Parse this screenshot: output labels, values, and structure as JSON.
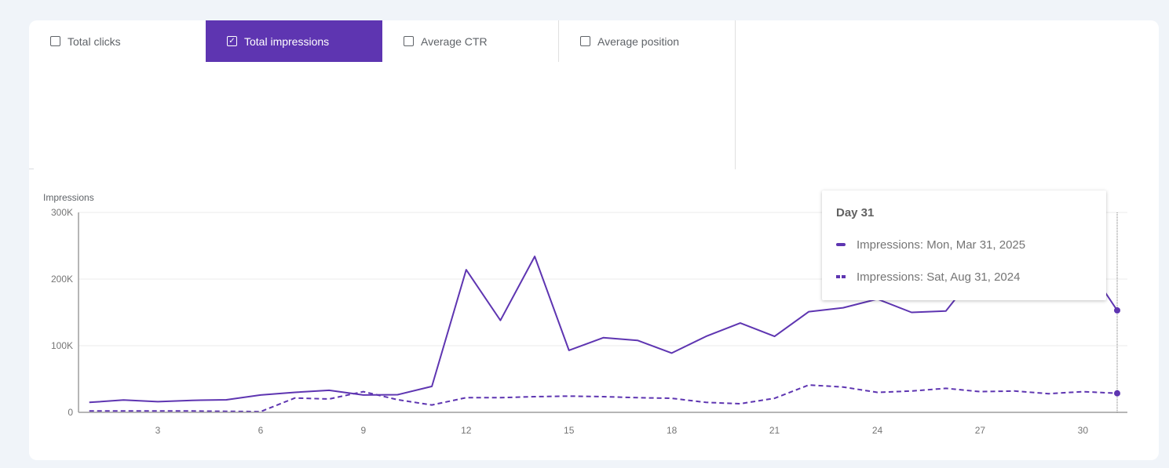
{
  "tabs": [
    {
      "label": "Total clicks",
      "checked": false
    },
    {
      "label": "Total impressions",
      "checked": true
    },
    {
      "label": "Average CTR",
      "checked": false
    },
    {
      "label": "Average position",
      "checked": false
    }
  ],
  "colors": {
    "accent": "#5e35b1",
    "background": "#f0f4f9",
    "gridline": "#ebebeb"
  },
  "tooltip": {
    "title": "Day 31",
    "rows": [
      {
        "label": "Impressions: Mon, Mar 31, 2025",
        "style": "solid"
      },
      {
        "label": "Impressions: Sat, Aug 31, 2024",
        "style": "dashed"
      }
    ]
  },
  "chart_data": {
    "type": "line",
    "title": "",
    "ylabel": "Impressions",
    "xlabel": "",
    "ylim": [
      0,
      300000
    ],
    "xlim": [
      1,
      31
    ],
    "grid": true,
    "y_ticks": [
      {
        "value": 0,
        "label": "0"
      },
      {
        "value": 100000,
        "label": "100K"
      },
      {
        "value": 200000,
        "label": "200K"
      },
      {
        "value": 300000,
        "label": "300K"
      }
    ],
    "x_ticks": [
      3,
      6,
      9,
      12,
      15,
      18,
      21,
      24,
      27,
      30
    ],
    "x": [
      1,
      2,
      3,
      4,
      5,
      6,
      7,
      8,
      9,
      10,
      11,
      12,
      13,
      14,
      15,
      16,
      17,
      18,
      19,
      20,
      21,
      22,
      23,
      24,
      25,
      26,
      27,
      28,
      29,
      30,
      31
    ],
    "series": [
      {
        "name": "Impressions: Mon, Mar 31, 2025",
        "style": "solid",
        "values": [
          15000,
          18500,
          16000,
          18000,
          18800,
          26000,
          30000,
          33000,
          26000,
          26500,
          39000,
          214000,
          138000,
          234000,
          93000,
          112000,
          108000,
          89000,
          114000,
          134000,
          114000,
          151000,
          157000,
          170000,
          150000,
          152000,
          217000,
          245000,
          208000,
          230000,
          153000
        ]
      },
      {
        "name": "Impressions: Sat, Aug 31, 2024",
        "style": "dashed",
        "values": [
          2000,
          2000,
          2000,
          2000,
          1500,
          1000,
          21500,
          20000,
          31000,
          19000,
          11000,
          22000,
          22000,
          23500,
          24300,
          23500,
          22000,
          21000,
          15000,
          13000,
          21000,
          41000,
          38000,
          30000,
          32000,
          36000,
          31000,
          32000,
          28000,
          31000,
          28600
        ]
      }
    ],
    "highlighted_x": 31
  }
}
